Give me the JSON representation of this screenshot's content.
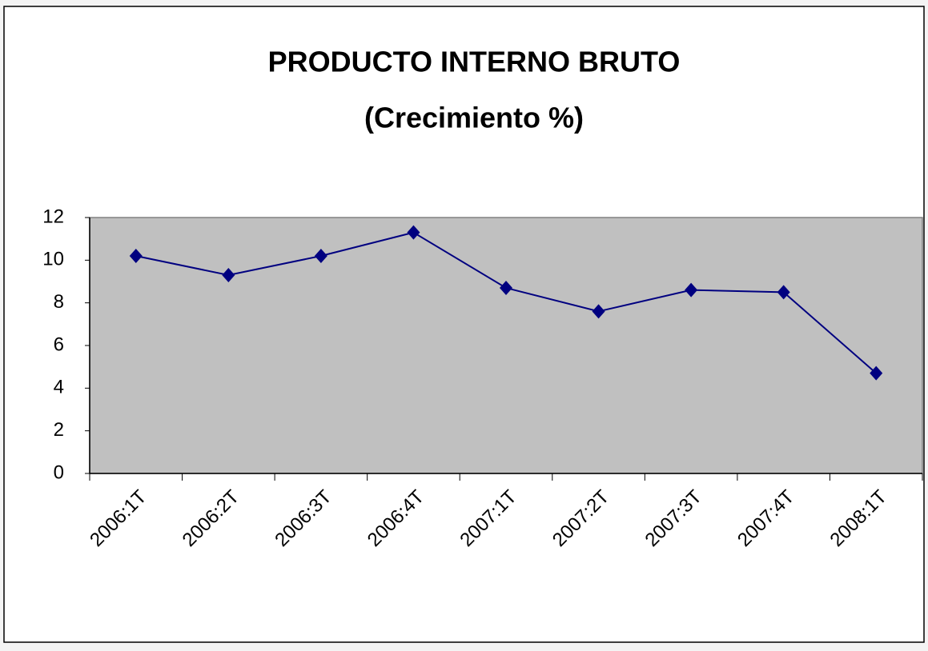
{
  "chart_data": {
    "type": "line",
    "title": "PRODUCTO INTERNO BRUTO",
    "subtitle": "(Crecimiento %)",
    "categories": [
      "2006:1T",
      "2006:2T",
      "2006:3T",
      "2006:4T",
      "2007:1T",
      "2007:2T",
      "2007:3T",
      "2007:4T",
      "2008:1T"
    ],
    "series": [
      {
        "color": "#000080",
        "values": [
          10.2,
          9.3,
          10.2,
          11.3,
          8.7,
          7.6,
          8.6,
          8.5,
          4.7
        ]
      }
    ],
    "ylim": [
      0,
      12
    ],
    "yticks": [
      0,
      2,
      4,
      6,
      8,
      10,
      12
    ],
    "grid": false,
    "plot_background": "#c0c0c0"
  }
}
